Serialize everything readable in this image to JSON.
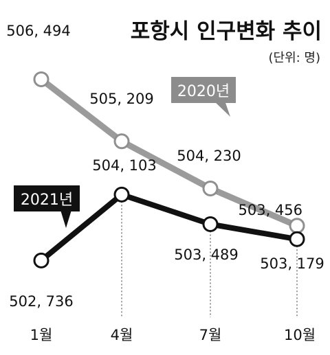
{
  "chart_data": {
    "type": "line",
    "title": "포항시 인구변화 추이",
    "unit_note": "(단위: 명)",
    "categories": [
      "1월",
      "4월",
      "7월",
      "10월"
    ],
    "series": [
      {
        "name": "2020년",
        "values": [
          506494,
          505209,
          504230,
          503456
        ],
        "labels": [
          "506, 494",
          "505, 209",
          "504, 230",
          "503, 456"
        ],
        "color": "#9b9b9b"
      },
      {
        "name": "2021년",
        "values": [
          502736,
          504103,
          503489,
          503179
        ],
        "labels": [
          "502, 736",
          "504, 103",
          "503, 489",
          "503, 179"
        ],
        "color": "#111111"
      }
    ],
    "ylim": [
      502300,
      507100
    ],
    "grid": false,
    "legend": "inline callouts"
  }
}
